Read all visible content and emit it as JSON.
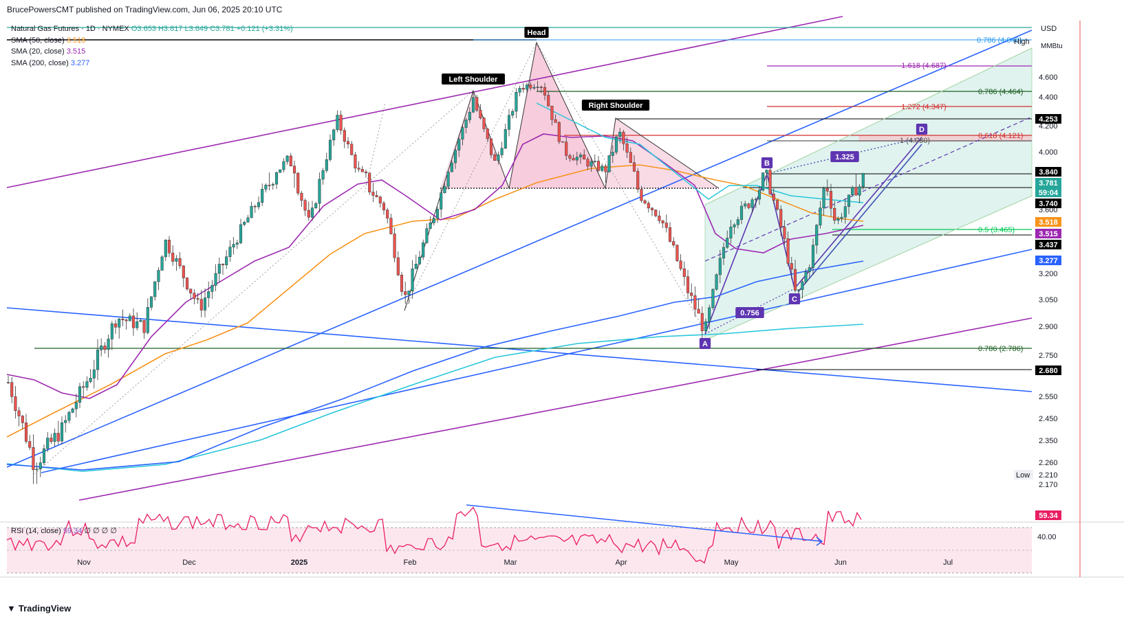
{
  "header": {
    "publisher": "BrucePowersCMT published on TradingView.com, Jun 06, 2025 20:10 UTC"
  },
  "legend": {
    "symbol": "Natural Gas Futures · 1D · NYMEX",
    "ohlc": "O3.653 H3.817 L3.649 C3.781 +0.121 (+3.31%)",
    "sma50": {
      "label": "SMA (50, close)",
      "value": "3.518",
      "color": "#f7931a"
    },
    "sma20": {
      "label": "SMA (20, close)",
      "value": "3.515",
      "color": "#9c27b0"
    },
    "sma200": {
      "label": "SMA (200, close)",
      "value": "3.277",
      "color": "#2962ff"
    }
  },
  "rsi": {
    "label": "RSI (14, close)",
    "value": "59.34",
    "extra": "∅ ∅ ∅ ∅"
  },
  "footer": {
    "brand": "TradingView",
    "logo": "tradingview-logo-icon"
  },
  "chart_data": {
    "type": "candlestick",
    "currency": "USD",
    "unit": "MMBtu",
    "y_ticks": [
      4.6,
      4.4,
      4.2,
      4.0,
      3.8,
      3.6,
      3.2,
      3.05,
      2.9,
      2.75,
      2.55,
      2.45,
      2.35,
      2.26,
      2.17
    ],
    "y_tick_labels": [
      "4.600",
      "4.400",
      "4.200",
      "4.000",
      "3.800",
      "3.600",
      "3.200",
      "3.050",
      "2.900",
      "2.750",
      "2.550",
      "2.450",
      "2.350",
      "2.260",
      "2.170"
    ],
    "x_ticks": [
      "Nov",
      "Dec",
      "2025",
      "Feb",
      "Mar",
      "Apr",
      "May",
      "Jun",
      "Jul"
    ],
    "rsi_tick": "40.00",
    "axis_badges": [
      {
        "label": "4.253",
        "value": 4.253,
        "bg": "#000000",
        "fg": "#ffffff"
      },
      {
        "label": "3.840",
        "value": 3.84,
        "bg": "#000000",
        "fg": "#ffffff"
      },
      {
        "label": "3.781",
        "value": 3.781,
        "bg": "#26a69a",
        "fg": "#ffffff"
      },
      {
        "label": "59:04",
        "value": 3.72,
        "bg": "#26a69a",
        "fg": "#ffffff"
      },
      {
        "label": "3.740",
        "value": 3.64,
        "bg": "#000000",
        "fg": "#ffffff"
      },
      {
        "label": "3.518",
        "value": 3.518,
        "bg": "#f7931a",
        "fg": "#ffffff"
      },
      {
        "label": "3.515",
        "value": 3.45,
        "bg": "#9c27b0",
        "fg": "#ffffff"
      },
      {
        "label": "3.437",
        "value": 3.37,
        "bg": "#000000",
        "fg": "#ffffff"
      },
      {
        "label": "3.277",
        "value": 3.277,
        "bg": "#2962ff",
        "fg": "#ffffff"
      },
      {
        "label": "2.680",
        "value": 2.68,
        "bg": "#000000",
        "fg": "#ffffff"
      }
    ],
    "extremes": {
      "high_label": "High",
      "low_label": "Low",
      "low_value": "2.210"
    },
    "fib_levels": [
      {
        "label": "0.786 (4.848)",
        "value": 4.848,
        "color": "#2196f3"
      },
      {
        "label": "1.618 (4.687)",
        "value": 4.687,
        "color": "#9c27b0"
      },
      {
        "label": "0.786 (4.464)",
        "value": 4.464,
        "color": "#1b5e20"
      },
      {
        "label": "1.272 (4.347)",
        "value": 4.347,
        "color": "#d32f2f"
      },
      {
        "label": "0.618 (4.121)",
        "value": 4.121,
        "color": "#d32f2f"
      },
      {
        "label": "1 (4.080)",
        "value": 4.08,
        "color": "#555555"
      },
      {
        "label": "0.5 (3.465)",
        "value": 3.465,
        "color": "#00c853"
      },
      {
        "label": "0.786 (2.786)",
        "value": 2.786,
        "color": "#1b5e20"
      }
    ],
    "pattern_labels": [
      "Head",
      "Left Shoulder",
      "Right Shoulder"
    ],
    "harmonic_points": [
      {
        "label": "A",
        "date": "2025-04-22",
        "value": 2.86
      },
      {
        "label": "B",
        "date": "2025-05-09",
        "value": 3.89
      },
      {
        "label": "C",
        "date": "2025-05-21",
        "value": 3.03
      },
      {
        "label": "D",
        "date": "2025-06-26",
        "value": 4.14
      }
    ],
    "harmonic_ratios": [
      "1.325",
      "0.756"
    ]
  }
}
